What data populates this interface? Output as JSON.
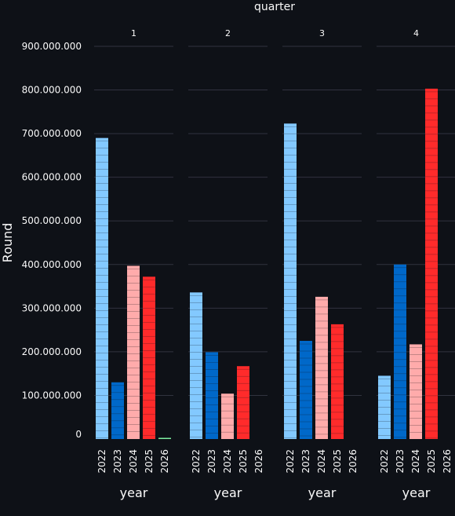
{
  "chart_data": {
    "type": "bar",
    "facet_title": "quarter",
    "xlabel": "year",
    "ylabel": "Round",
    "ylim": [
      0,
      900000000
    ],
    "y_ticks": [
      0,
      100000000,
      200000000,
      300000000,
      400000000,
      500000000,
      600000000,
      700000000,
      800000000,
      900000000
    ],
    "y_tick_labels": [
      "0",
      "100.000.000",
      "200.000.000",
      "300.000.000",
      "400.000.000",
      "500.000.000",
      "600.000.000",
      "700.000.000",
      "800.000.000",
      "900.000.000"
    ],
    "categories": [
      "2022",
      "2023",
      "2024",
      "2025",
      "2026"
    ],
    "colors": {
      "2022": "#83c9ff",
      "2023": "#0068c9",
      "2024": "#ffabab",
      "2025": "#ff2b2b",
      "2026": "#7defa1"
    },
    "grid": true,
    "legend": "none",
    "facets": [
      {
        "label": "1",
        "values": [
          690000000,
          130000000,
          397000000,
          372000000,
          2000000
        ]
      },
      {
        "label": "2",
        "values": [
          336000000,
          199000000,
          104000000,
          167000000,
          0
        ]
      },
      {
        "label": "3",
        "values": [
          723000000,
          225000000,
          326000000,
          263000000,
          0
        ]
      },
      {
        "label": "4",
        "values": [
          145000000,
          400000000,
          217000000,
          803000000,
          0
        ]
      }
    ]
  }
}
